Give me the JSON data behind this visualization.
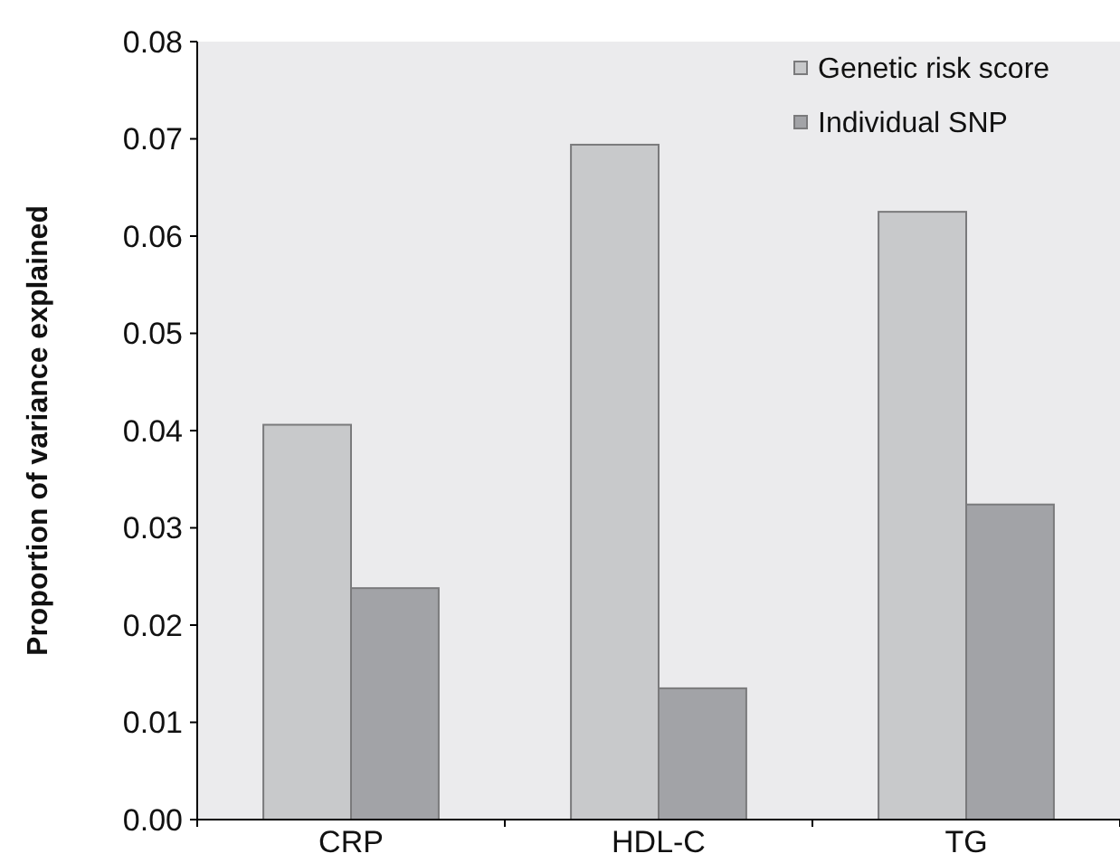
{
  "chart_data": {
    "type": "bar",
    "ylabel": "Proportion of variance explained",
    "categories": [
      "CRP",
      "HDL-C",
      "TG"
    ],
    "series": [
      {
        "name": "Genetic risk score",
        "color": "#c8c9cb",
        "values": [
          0.0406,
          0.0694,
          0.0625
        ]
      },
      {
        "name": "Individual SNP",
        "color": "#a2a3a7",
        "values": [
          0.0238,
          0.0135,
          0.0324
        ]
      }
    ],
    "ylim": [
      0,
      0.08
    ],
    "yticks": [
      {
        "value": 0,
        "label": "0.00"
      },
      0.01,
      0.02,
      0.03,
      0.04,
      0.05,
      0.06,
      0.07,
      0.08
    ],
    "grid": false,
    "legend": "top right"
  }
}
